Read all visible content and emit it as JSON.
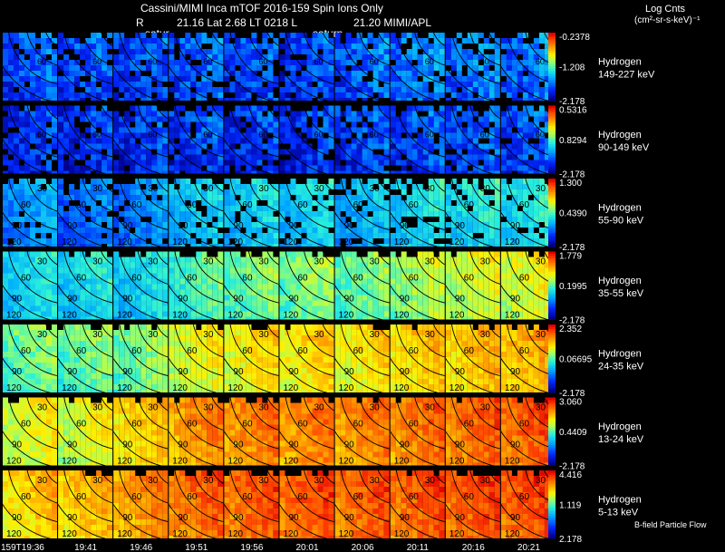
{
  "header": {
    "title": "Cassini/MIMI Inca mTOF  2016-159    Spin    Ions Only",
    "r_label": "R",
    "geo": "21.16 Lat 2.68 LT 0218 L",
    "l_value": "21.20   MIMI/APL",
    "saturn_labels": [
      "satur",
      "saturn"
    ],
    "units_line1": "Log Cnts",
    "units_line2": "(cm²-sr-s-keV)⁻¹"
  },
  "chart_data": {
    "type": "heatmap",
    "time_labels": [
      "159T19:36",
      "19:41",
      "19:46",
      "19:51",
      "19:56",
      "20:01",
      "20:06",
      "20:11",
      "20:16",
      "20:21"
    ],
    "contour_labels": [
      "30",
      "60",
      "90",
      "120"
    ],
    "footer_note": "B-field Particle Flow",
    "rows": [
      {
        "species": "Hydrogen",
        "energy": "149-227 keV",
        "scale": [
          "-0.2378",
          "-1.208",
          "-2.178"
        ],
        "levels": [
          0.18,
          0.17,
          0.16,
          0.2,
          0.17,
          0.15,
          0.2,
          0.24,
          0.23,
          0.22
        ]
      },
      {
        "species": "Hydrogen",
        "energy": "90-149 keV",
        "scale": [
          "0.5316",
          "0.8294",
          "-2.178"
        ],
        "levels": [
          0.12,
          0.12,
          0.14,
          0.15,
          0.13,
          0.13,
          0.16,
          0.17,
          0.18,
          0.18
        ]
      },
      {
        "species": "Hydrogen",
        "energy": "55-90 keV",
        "scale": [
          "1.300",
          "0.4390",
          "-2.178"
        ],
        "levels": [
          0.28,
          0.22,
          0.25,
          0.34,
          0.36,
          0.36,
          0.32,
          0.38,
          0.4,
          0.4
        ]
      },
      {
        "species": "Hydrogen",
        "energy": "35-55 keV",
        "scale": [
          "1.779",
          "0.1995",
          "-2.178"
        ],
        "levels": [
          0.38,
          0.38,
          0.38,
          0.46,
          0.5,
          0.52,
          0.5,
          0.56,
          0.6,
          0.62
        ]
      },
      {
        "species": "Hydrogen",
        "energy": "24-35 keV",
        "scale": [
          "2.352",
          "0.06695",
          "-2.178"
        ],
        "levels": [
          0.5,
          0.5,
          0.52,
          0.62,
          0.66,
          0.68,
          0.66,
          0.7,
          0.72,
          0.74
        ]
      },
      {
        "species": "Hydrogen",
        "energy": "13-24 keV",
        "scale": [
          "3.060",
          "0.4409",
          "-2.178"
        ],
        "levels": [
          0.62,
          0.62,
          0.7,
          0.78,
          0.8,
          0.8,
          0.8,
          0.82,
          0.84,
          0.86
        ]
      },
      {
        "species": "Hydrogen",
        "energy": "5-13 keV",
        "scale": [
          "4.416",
          "1.119",
          "2.178"
        ],
        "levels": [
          0.7,
          0.72,
          0.78,
          0.84,
          0.85,
          0.86,
          0.85,
          0.86,
          0.87,
          0.88
        ]
      }
    ]
  }
}
